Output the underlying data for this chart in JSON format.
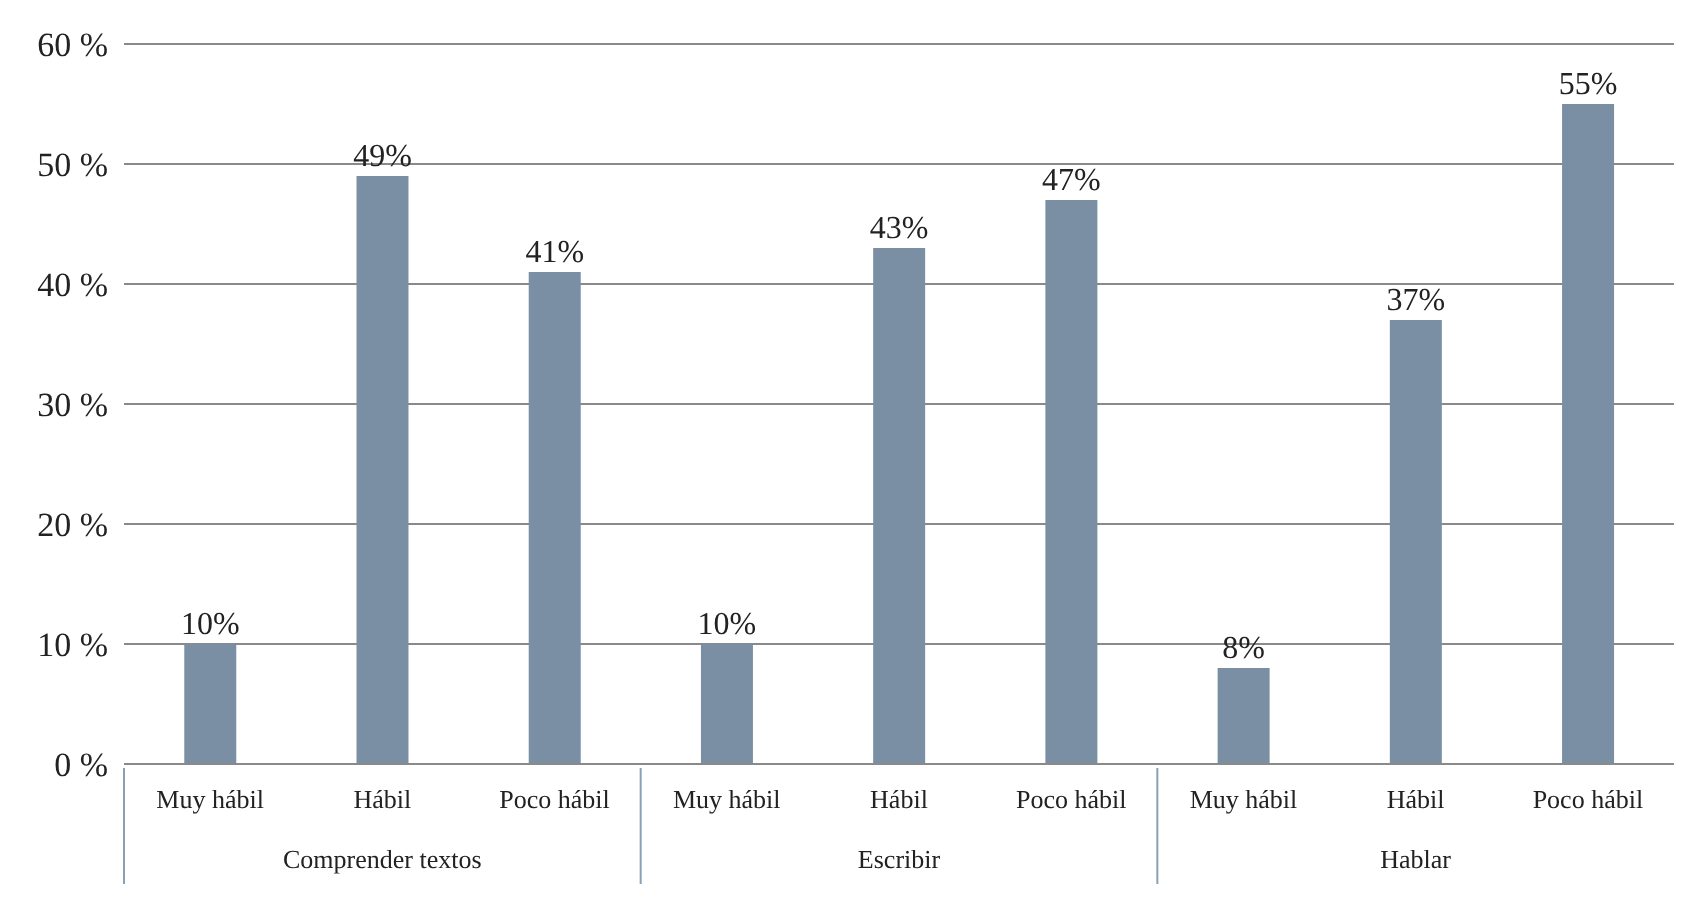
{
  "chart_data": {
    "type": "bar",
    "categories": [
      "Muy hábil",
      "Hábil",
      "Poco hábil",
      "Muy hábil",
      "Hábil",
      "Poco hábil",
      "Muy hábil",
      "Hábil",
      "Poco hábil"
    ],
    "values": [
      10,
      49,
      41,
      10,
      43,
      47,
      8,
      37,
      55
    ],
    "value_labels": [
      "10%",
      "49%",
      "41%",
      "10%",
      "43%",
      "47%",
      "8%",
      "37%",
      "55%"
    ],
    "color": "#7a8fa3",
    "annotations": [
      "Comprender textos",
      "Escribir",
      "Hablar"
    ],
    "ylim": [
      0,
      60
    ],
    "yticks": [
      {
        "value": 0,
        "label": "0 %"
      },
      {
        "value": 10,
        "label": "10 %"
      },
      {
        "value": 20,
        "label": "20 %"
      },
      {
        "value": 30,
        "label": "30 %"
      },
      {
        "value": 40,
        "label": "40 %"
      },
      {
        "value": 50,
        "label": "50 %"
      },
      {
        "value": 60,
        "label": "60 %"
      }
    ],
    "grid": "y"
  }
}
